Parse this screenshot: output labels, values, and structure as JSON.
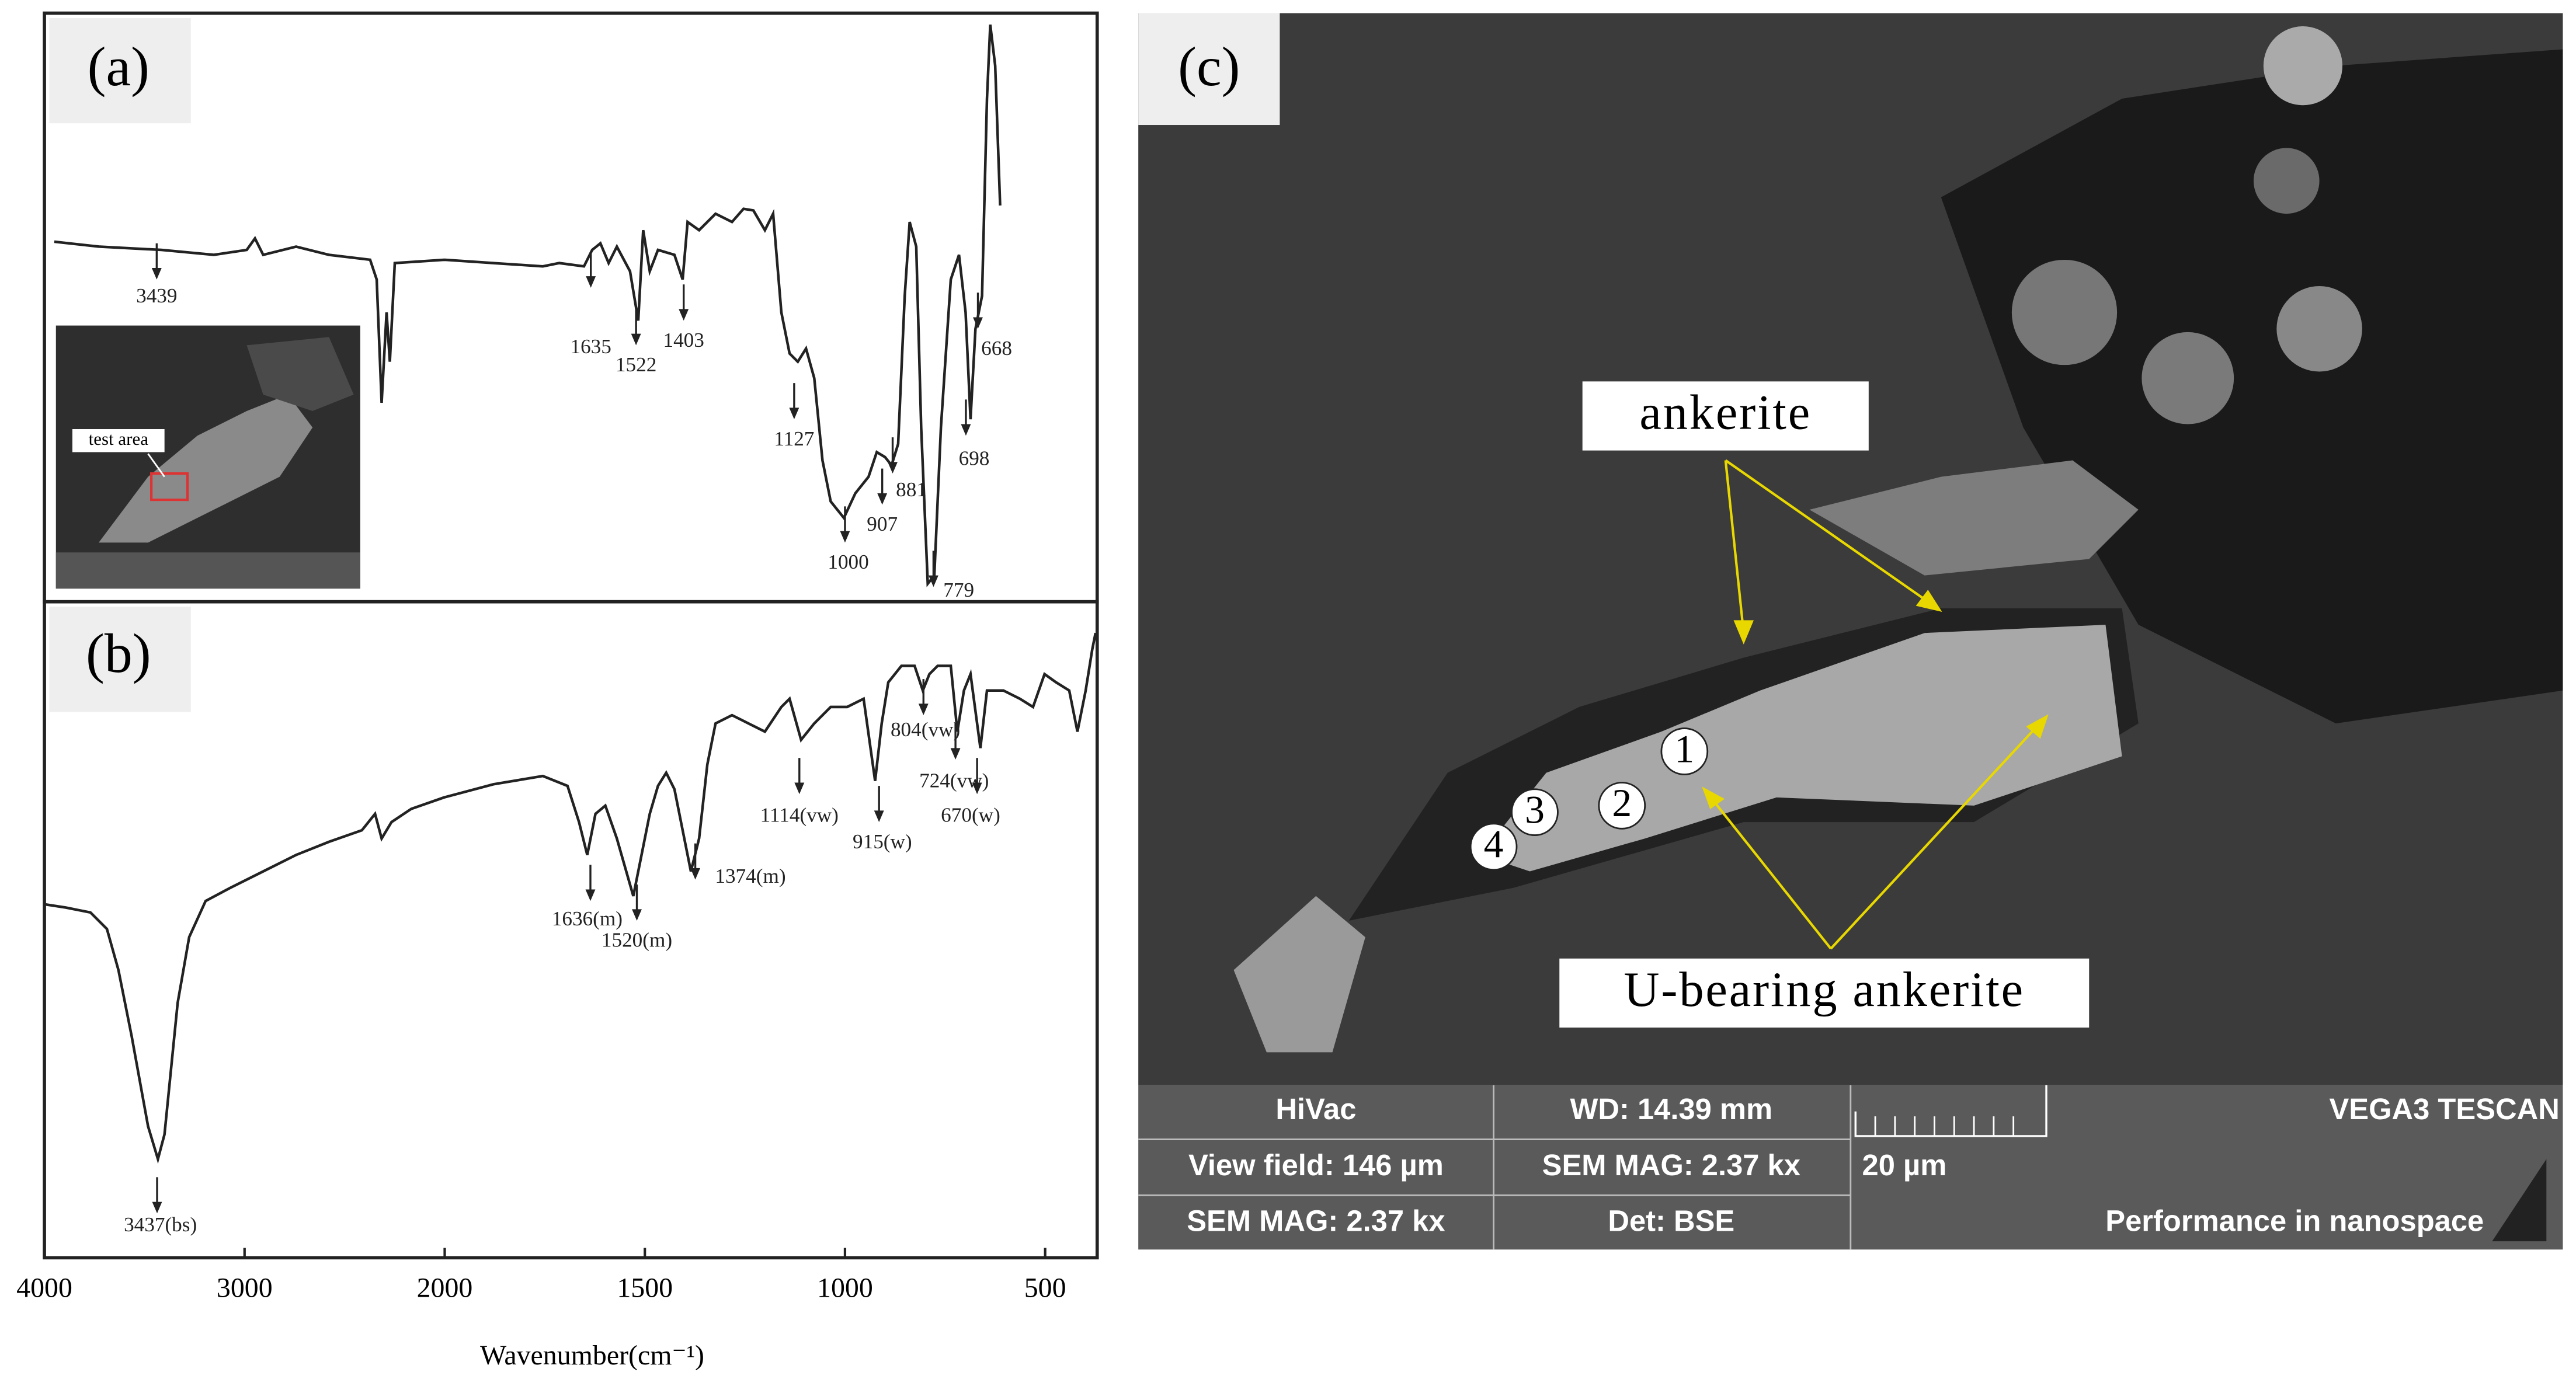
{
  "chart_data": {
    "type": "line",
    "xlim": [
      4000,
      370
    ],
    "xticks": [
      4000,
      3000,
      2000,
      1500,
      1000,
      500
    ],
    "xlabel": "Wavenumber(cm⁻¹)",
    "color": "#222222",
    "panels": [
      {
        "label": "(a)",
        "inset_label": "test area",
        "annotations": [
          3439,
          1635,
          1522,
          1403,
          1127,
          1000,
          907,
          881,
          779,
          698,
          668
        ]
      },
      {
        "label": "(b)",
        "annotations": [
          {
            "value": 3437,
            "label": "3437(bs)"
          },
          {
            "value": 1636,
            "label": "1636(m)"
          },
          {
            "value": 1520,
            "label": "1520(m)"
          },
          {
            "value": 1374,
            "label": "1374(m)"
          },
          {
            "value": 1114,
            "label": "1114(vw)"
          },
          {
            "value": 915,
            "label": "915(w)"
          },
          {
            "value": 804,
            "label": "804(vw)"
          },
          {
            "value": 724,
            "label": "724(vw)"
          },
          {
            "value": 670,
            "label": "670(w)"
          }
        ]
      }
    ]
  },
  "sem_image": {
    "label": "(c)",
    "mineral_label": "ankerite",
    "u_mineral_label": "U-bearing ankerite",
    "points": [
      "1",
      "2",
      "3",
      "4"
    ],
    "info_bar": {
      "mode": "HiVac",
      "wd": "WD: 14.39 mm",
      "brand": "VEGA3 TESCAN",
      "view_field": "View field: 146 µm",
      "mag": "SEM MAG: 2.37 kx",
      "scale": "20 µm",
      "mag2": "SEM MAG: 2.37 kx",
      "detector": "Det: BSE",
      "slogan": "Performance in nanospace"
    }
  }
}
